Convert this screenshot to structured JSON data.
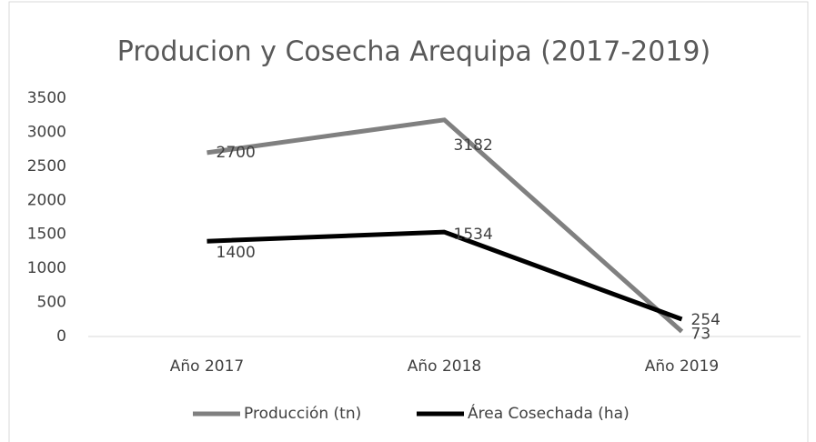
{
  "chart_data": {
    "type": "line",
    "title": "Producion y Cosecha Arequipa (2017-2019)",
    "categories": [
      "Año 2017",
      "Año 2018",
      "Año 2019"
    ],
    "series": [
      {
        "name": "Producción (tn)",
        "color": "#808080",
        "values": [
          2700,
          3182,
          73
        ]
      },
      {
        "name": "Área Cosechada (ha)",
        "color": "#000000",
        "values": [
          1400,
          1534,
          254
        ]
      }
    ],
    "ylim": [
      0,
      3500
    ],
    "yticks": [
      0,
      500,
      1000,
      1500,
      2000,
      2500,
      3000,
      3500
    ],
    "grid": false,
    "legend": "bottom"
  }
}
